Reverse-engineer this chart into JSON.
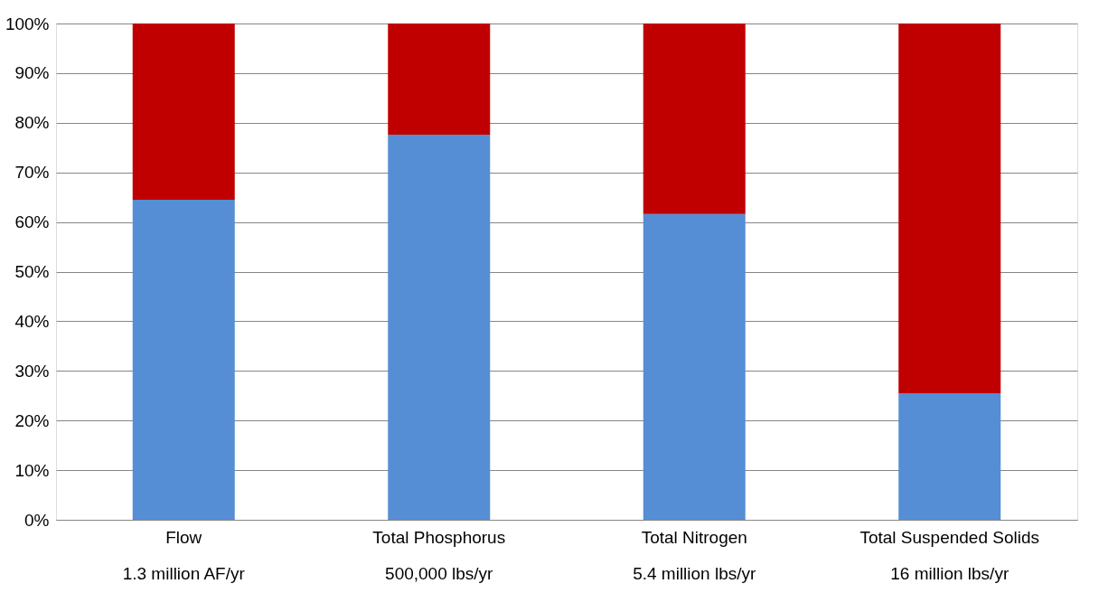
{
  "chart_data": {
    "type": "bar",
    "stacked": true,
    "categories": [
      "Flow\n1.3 million AF/yr",
      "Total Phosphorus\n500,000 lbs/yr",
      "Total Nitrogen\n5.4 million lbs/yr",
      "Total Suspended Solids\n16 million lbs/yr"
    ],
    "series": [
      {
        "color": "#558ed5",
        "values": [
          64.5,
          77.6,
          61.6,
          25.5
        ]
      },
      {
        "color": "#c00000",
        "values": [
          35.5,
          22.4,
          38.4,
          74.5
        ]
      }
    ],
    "ylim": [
      0,
      100
    ],
    "yticks": [
      {
        "value": 0,
        "label": "0%"
      },
      {
        "value": 10,
        "label": "10%"
      },
      {
        "value": 20,
        "label": "20%"
      },
      {
        "value": 30,
        "label": "30%"
      },
      {
        "value": 40,
        "label": "40%"
      },
      {
        "value": 50,
        "label": "50%"
      },
      {
        "value": 60,
        "label": "60%"
      },
      {
        "value": 70,
        "label": "70%"
      },
      {
        "value": 80,
        "label": "80%"
      },
      {
        "value": 90,
        "label": "90%"
      },
      {
        "value": 100,
        "label": "100%"
      }
    ],
    "grid": "y",
    "legend": false
  }
}
